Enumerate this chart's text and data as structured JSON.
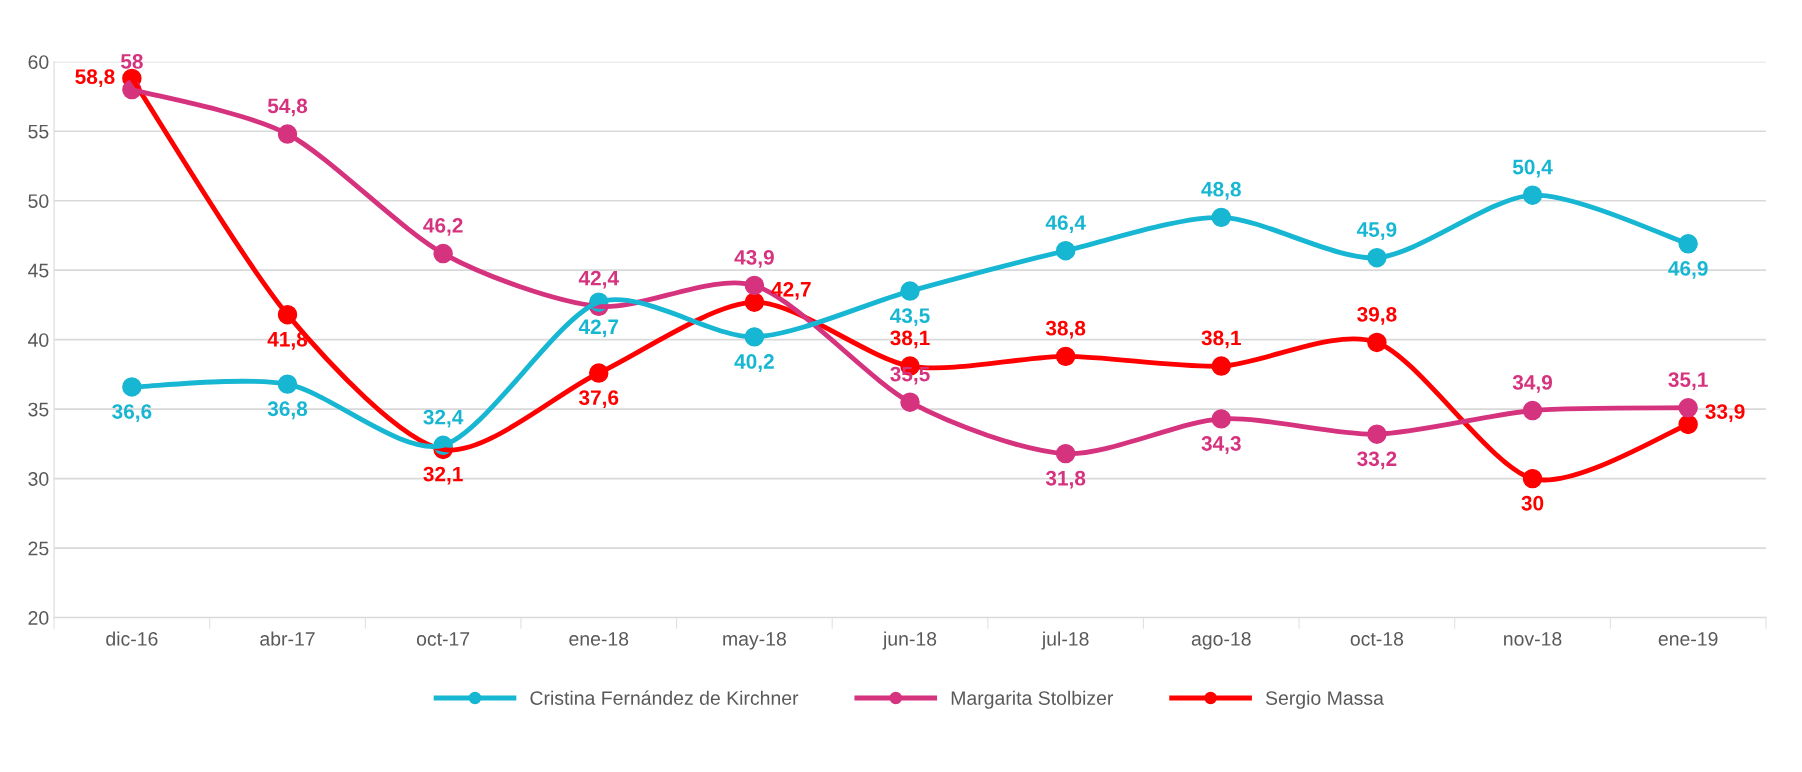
{
  "chart_data": {
    "type": "line",
    "categories": [
      "dic-16",
      "abr-17",
      "oct-17",
      "ene-18",
      "may-18",
      "jun-18",
      "jul-18",
      "ago-18",
      "oct-18",
      "nov-18",
      "ene-19"
    ],
    "series": [
      {
        "name": "Cristina Fernández de Kirchner",
        "color": "#17b6d2",
        "values": [
          36.6,
          36.8,
          32.4,
          42.7,
          40.2,
          43.5,
          46.4,
          48.8,
          45.9,
          50.4,
          46.9
        ],
        "value_labels": [
          "36,6",
          "36,8",
          "32,4",
          "42,7",
          "40,2",
          "43,5",
          "46,4",
          "48,8",
          "45,9",
          "50,4",
          "46,9"
        ]
      },
      {
        "name": "Margarita Stolbizer",
        "color": "#d6337f",
        "values": [
          58,
          54.8,
          46.2,
          42.4,
          43.9,
          35.5,
          31.8,
          34.3,
          33.2,
          34.9,
          35.1
        ],
        "value_labels": [
          "58",
          "54,8",
          "46,2",
          "42,4",
          "43,9",
          "35,5",
          "31,8",
          "34,3",
          "33,2",
          "34,9",
          "35,1"
        ]
      },
      {
        "name": "Sergio Massa",
        "color": "#ff0000",
        "values": [
          58.8,
          41.8,
          32.1,
          37.6,
          42.7,
          38.1,
          38.8,
          38.1,
          39.8,
          30,
          33.9
        ],
        "value_labels": [
          "58,8",
          "41,8",
          "32,1",
          "37,6",
          "42,7",
          "38,1",
          "38,8",
          "38,1",
          "39,8",
          "30",
          "33,9"
        ]
      }
    ],
    "ylim": [
      20,
      60
    ],
    "yticks": [
      20,
      25,
      30,
      35,
      40,
      45,
      50,
      55,
      60
    ],
    "grid": "y",
    "legend": "bottom",
    "marker": "circle",
    "line_style": "solid"
  }
}
